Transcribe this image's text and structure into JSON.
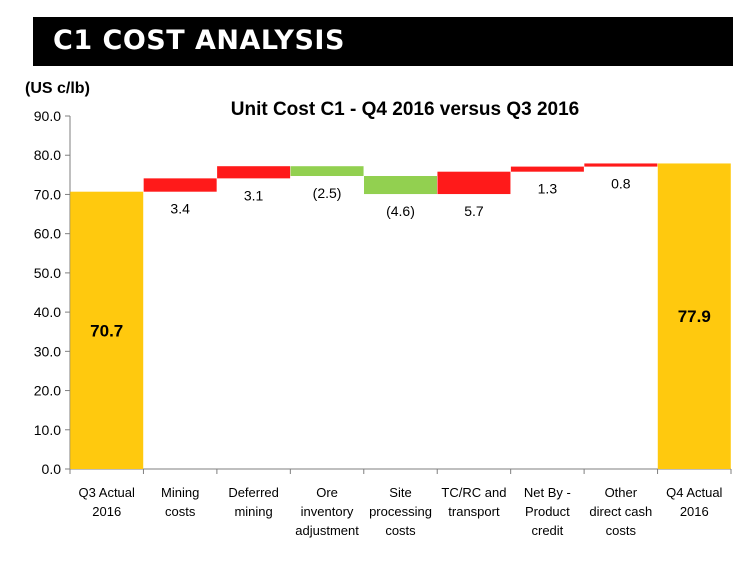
{
  "header": {
    "title": "C1 COST ANALYSIS"
  },
  "colors": {
    "total": "#ffc90e",
    "increase": "#ff1a1a",
    "decrease": "#92d050",
    "axis": "#7f7f7f"
  },
  "chart_data": {
    "type": "bar",
    "subtype": "waterfall",
    "title": "Unit Cost C1 - Q4 2016 versus Q3 2016",
    "ylabel": "(US c/lb)",
    "ylim": [
      0,
      90
    ],
    "yticks": [
      "0.0",
      "10.0",
      "20.0",
      "30.0",
      "40.0",
      "50.0",
      "60.0",
      "70.0",
      "80.0",
      "90.0"
    ],
    "grid": false,
    "categories": [
      [
        "Q3 Actual",
        "2016"
      ],
      [
        "Mining",
        "costs"
      ],
      [
        "Deferred",
        "mining"
      ],
      [
        "Ore",
        "inventory",
        "adjustment"
      ],
      [
        "Site",
        "processing",
        "costs"
      ],
      [
        "TC/RC and",
        "transport"
      ],
      [
        "Net By -",
        "Product",
        "credit"
      ],
      [
        "Other",
        "direct cash",
        "costs"
      ],
      [
        "Q4 Actual",
        "2016"
      ]
    ],
    "bars": [
      {
        "kind": "total",
        "start": 0,
        "end": 70.7,
        "label": "70.7"
      },
      {
        "kind": "increase",
        "start": 70.7,
        "end": 74.1,
        "label": "3.4"
      },
      {
        "kind": "increase",
        "start": 74.1,
        "end": 77.2,
        "label": "3.1"
      },
      {
        "kind": "decrease",
        "start": 77.2,
        "end": 74.7,
        "label": "(2.5)"
      },
      {
        "kind": "decrease",
        "start": 74.7,
        "end": 70.1,
        "label": "(4.6)"
      },
      {
        "kind": "increase",
        "start": 70.1,
        "end": 75.8,
        "label": "5.7"
      },
      {
        "kind": "increase",
        "start": 75.8,
        "end": 77.1,
        "label": "1.3"
      },
      {
        "kind": "increase",
        "start": 77.1,
        "end": 77.9,
        "label": "0.8"
      },
      {
        "kind": "total",
        "start": 0,
        "end": 77.9,
        "label": "77.9"
      }
    ]
  }
}
